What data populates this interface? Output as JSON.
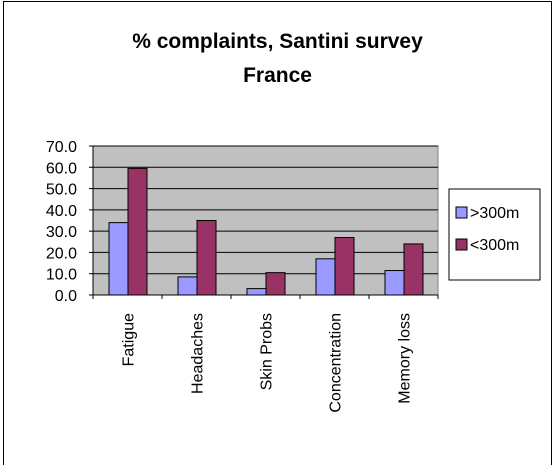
{
  "chart_data": {
    "type": "bar",
    "title": [
      "% complaints, Santini survey",
      "France"
    ],
    "categories": [
      "Fatigue",
      "Headaches",
      "Skin Probs",
      "Concentration",
      "Memory loss"
    ],
    "series": [
      {
        "name": ">300m",
        "values": [
          34,
          8.5,
          3,
          17,
          11.5
        ],
        "color": "#9999ff"
      },
      {
        "name": "<300m",
        "values": [
          59.5,
          35,
          10.5,
          27,
          24
        ],
        "color": "#993366"
      }
    ],
    "yticks": [
      "0.0",
      "10.0",
      "20.0",
      "30.0",
      "40.0",
      "50.0",
      "60.0",
      "70.0"
    ],
    "ylim": [
      0,
      70
    ],
    "grid": true,
    "plot_background": "#c0c0c0",
    "legend_position": "right"
  }
}
